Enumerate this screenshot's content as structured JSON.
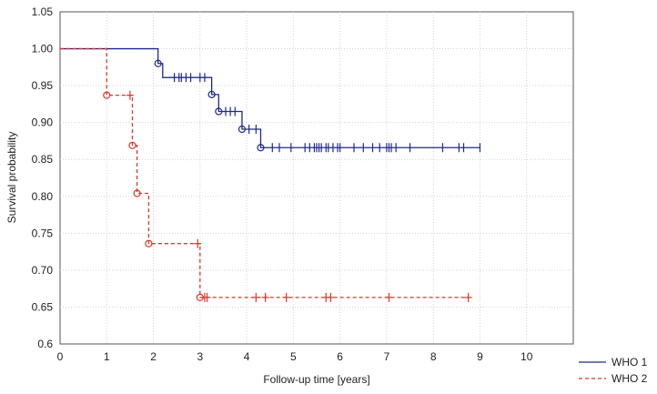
{
  "chart_data": {
    "type": "line",
    "title": "",
    "xlabel": "Follow-up time [years]",
    "ylabel": "Survival probability",
    "xlim": [
      0,
      11
    ],
    "ylim": [
      0.6,
      1.05
    ],
    "x_ticks": [
      "0",
      "1",
      "2",
      "3",
      "4",
      "5",
      "6",
      "7",
      "8",
      "9",
      "10"
    ],
    "y_ticks": [
      "1.05",
      "1.00",
      "0.95",
      "0.90",
      "0.85",
      "0.80",
      "0.75",
      "0.70",
      "0.65",
      "0.6"
    ],
    "grid": true,
    "legend_position": "bottom-right outside",
    "series": [
      {
        "name": "WHO 1",
        "color": "#1f2a8c",
        "line_style": "solid",
        "steps": [
          {
            "x": 0,
            "y": 1.0
          },
          {
            "x": 2.1,
            "y": 0.98
          },
          {
            "x": 2.2,
            "y": 0.961
          },
          {
            "x": 3.25,
            "y": 0.938
          },
          {
            "x": 3.4,
            "y": 0.915
          },
          {
            "x": 3.9,
            "y": 0.891
          },
          {
            "x": 4.3,
            "y": 0.866
          }
        ],
        "end_x": 9.0,
        "event_markers": [
          {
            "x": 2.1,
            "y": 0.98
          },
          {
            "x": 3.25,
            "y": 0.938
          },
          {
            "x": 3.4,
            "y": 0.915
          },
          {
            "x": 3.9,
            "y": 0.891
          },
          {
            "x": 4.3,
            "y": 0.866
          }
        ],
        "censored": [
          {
            "x": 2.45,
            "y": 0.961
          },
          {
            "x": 2.55,
            "y": 0.961
          },
          {
            "x": 2.6,
            "y": 0.961
          },
          {
            "x": 2.7,
            "y": 0.961
          },
          {
            "x": 2.8,
            "y": 0.961
          },
          {
            "x": 3.0,
            "y": 0.961
          },
          {
            "x": 3.1,
            "y": 0.961
          },
          {
            "x": 3.55,
            "y": 0.915
          },
          {
            "x": 3.65,
            "y": 0.915
          },
          {
            "x": 3.75,
            "y": 0.915
          },
          {
            "x": 4.05,
            "y": 0.891
          },
          {
            "x": 4.2,
            "y": 0.891
          },
          {
            "x": 4.55,
            "y": 0.866
          },
          {
            "x": 4.7,
            "y": 0.866
          },
          {
            "x": 4.95,
            "y": 0.866
          },
          {
            "x": 5.25,
            "y": 0.866
          },
          {
            "x": 5.35,
            "y": 0.866
          },
          {
            "x": 5.45,
            "y": 0.866
          },
          {
            "x": 5.5,
            "y": 0.866
          },
          {
            "x": 5.55,
            "y": 0.866
          },
          {
            "x": 5.6,
            "y": 0.866
          },
          {
            "x": 5.7,
            "y": 0.866
          },
          {
            "x": 5.75,
            "y": 0.866
          },
          {
            "x": 5.85,
            "y": 0.866
          },
          {
            "x": 5.95,
            "y": 0.866
          },
          {
            "x": 6.0,
            "y": 0.866
          },
          {
            "x": 6.3,
            "y": 0.866
          },
          {
            "x": 6.5,
            "y": 0.866
          },
          {
            "x": 6.7,
            "y": 0.866
          },
          {
            "x": 6.85,
            "y": 0.866
          },
          {
            "x": 7.0,
            "y": 0.866
          },
          {
            "x": 7.05,
            "y": 0.866
          },
          {
            "x": 7.1,
            "y": 0.866
          },
          {
            "x": 7.2,
            "y": 0.866
          },
          {
            "x": 7.5,
            "y": 0.866
          },
          {
            "x": 8.2,
            "y": 0.866
          },
          {
            "x": 8.55,
            "y": 0.866
          },
          {
            "x": 8.65,
            "y": 0.866
          },
          {
            "x": 9.0,
            "y": 0.866
          }
        ]
      },
      {
        "name": "WHO 2",
        "color": "#e0342a",
        "line_style": "dashed",
        "steps": [
          {
            "x": 0,
            "y": 1.0
          },
          {
            "x": 1.0,
            "y": 0.937
          },
          {
            "x": 1.55,
            "y": 0.869
          },
          {
            "x": 1.65,
            "y": 0.804
          },
          {
            "x": 1.9,
            "y": 0.736
          },
          {
            "x": 3.0,
            "y": 0.663
          }
        ],
        "end_x": 8.75,
        "event_markers": [
          {
            "x": 1.0,
            "y": 0.937
          },
          {
            "x": 1.55,
            "y": 0.869
          },
          {
            "x": 1.65,
            "y": 0.804
          },
          {
            "x": 1.9,
            "y": 0.736
          },
          {
            "x": 3.0,
            "y": 0.663
          }
        ],
        "censored": [
          {
            "x": 1.5,
            "y": 0.937
          },
          {
            "x": 2.95,
            "y": 0.736
          },
          {
            "x": 3.1,
            "y": 0.663
          },
          {
            "x": 3.15,
            "y": 0.663
          },
          {
            "x": 4.2,
            "y": 0.663
          },
          {
            "x": 4.4,
            "y": 0.663
          },
          {
            "x": 4.85,
            "y": 0.663
          },
          {
            "x": 5.7,
            "y": 0.663
          },
          {
            "x": 5.8,
            "y": 0.663
          },
          {
            "x": 7.05,
            "y": 0.663
          },
          {
            "x": 8.75,
            "y": 0.663
          }
        ]
      }
    ]
  }
}
